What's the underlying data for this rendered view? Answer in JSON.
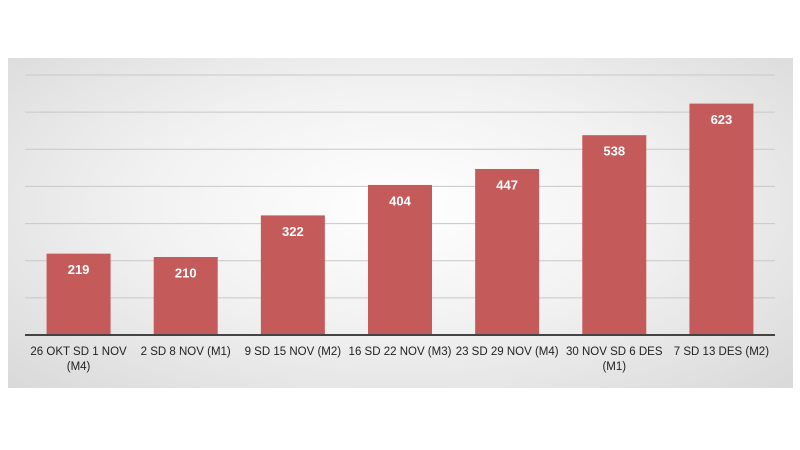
{
  "chart_data": {
    "type": "bar",
    "categories": [
      "26 OKT SD 1 NOV (M4)",
      "2 SD 8 NOV (M1)",
      "9 SD 15 NOV (M2)",
      "16 SD 22 NOV (M3)",
      "23 SD 29 NOV (M4)",
      "30 NOV SD 6 DES (M1)",
      "7 SD 13 DES (M2)"
    ],
    "values": [
      219,
      210,
      322,
      404,
      447,
      538,
      623
    ],
    "color": "#c55a5a",
    "ylim": [
      0,
      700
    ],
    "yticks": [
      100,
      200,
      300,
      400,
      500,
      600,
      700
    ],
    "grid": true
  }
}
